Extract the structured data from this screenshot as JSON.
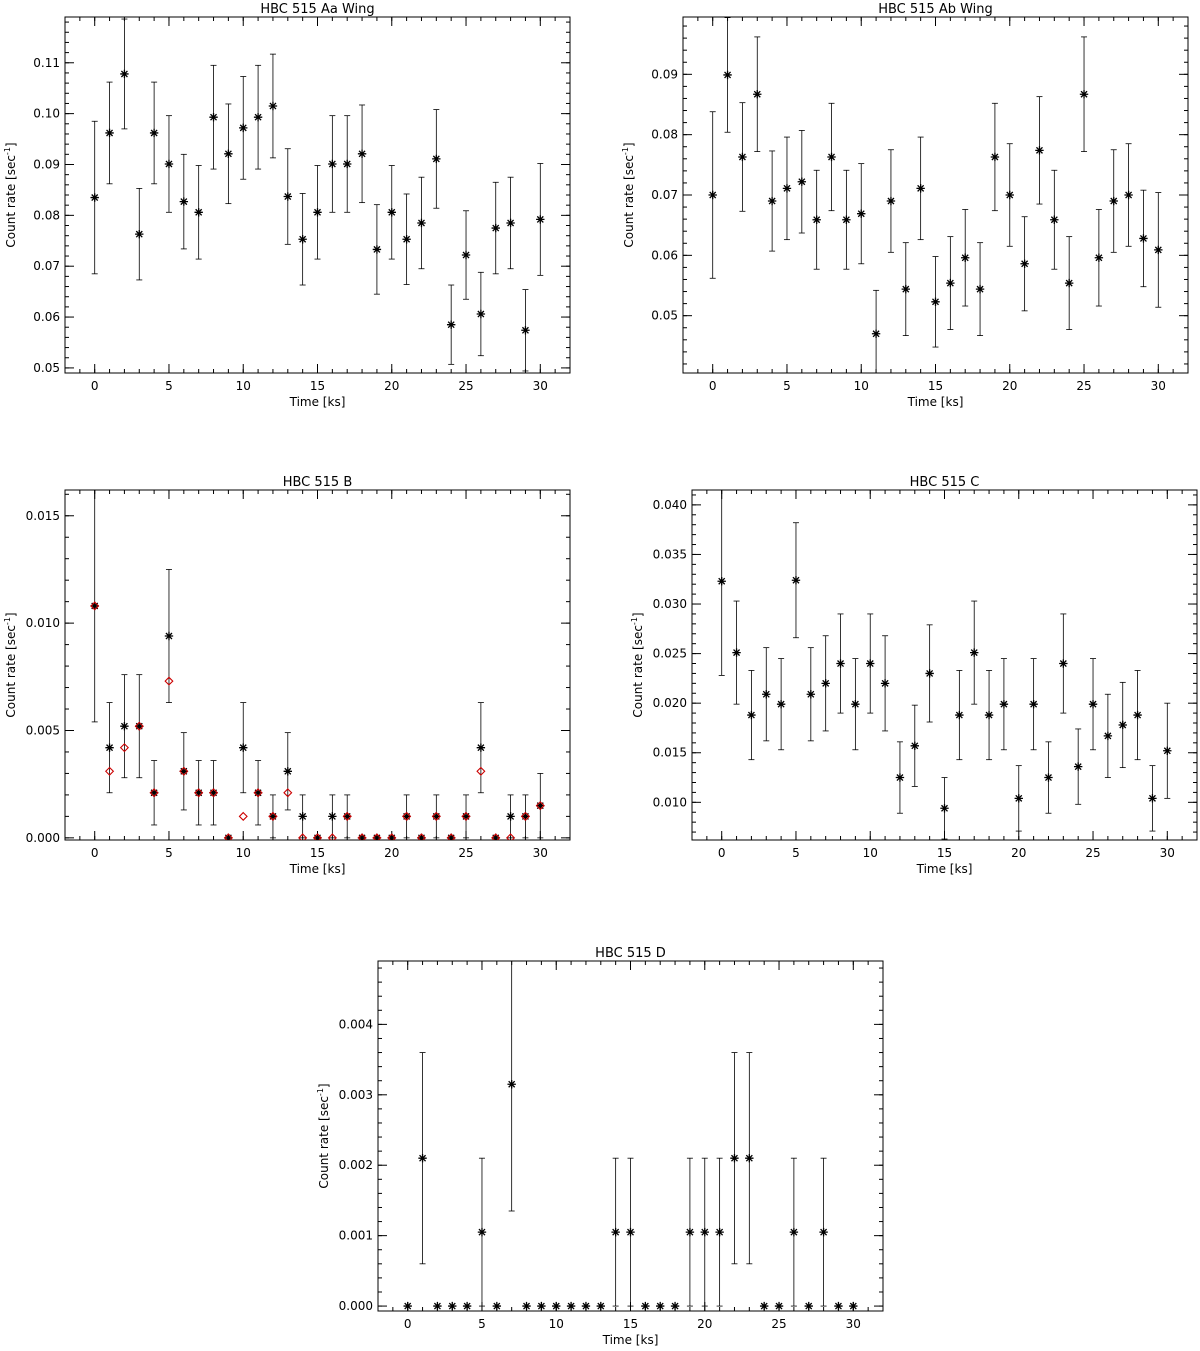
{
  "figure_panels": [
    "HBC 515 Aa Wing",
    "HBC 515 Ab Wing",
    "HBC 515 B",
    "HBC 515 C",
    "HBC 515 D"
  ],
  "colors": {
    "primary_marker": "#000000",
    "secondary_marker": "#cc0000",
    "error_bar": "#000000"
  },
  "chart_data": [
    {
      "type": "scatter",
      "title": "HBC 515 Aa Wing",
      "xlabel": "Time [ks]",
      "ylabel": "Count rate [sec",
      "ylabel_sup": "-1",
      "ylabel_end": "]",
      "xlim": [
        -2,
        32
      ],
      "ylim": [
        0.049,
        0.119
      ],
      "xticks": [
        0,
        5,
        10,
        15,
        20,
        25,
        30
      ],
      "xtick_labels": [
        "0",
        "5",
        "10",
        "15",
        "20",
        "25",
        "30"
      ],
      "yticks": [
        0.05,
        0.06,
        0.07,
        0.08,
        0.09,
        0.1,
        0.11
      ],
      "ytick_labels": [
        "0.05",
        "0.06",
        "0.07",
        "0.08",
        "0.09",
        "0.10",
        "0.11"
      ],
      "x_minor": 1,
      "y_minor": 0.002,
      "series": [
        {
          "marker": "asterisk",
          "color": "#000000",
          "x": [
            0,
            1,
            2,
            3,
            4,
            5,
            6,
            7,
            8,
            9,
            10,
            11,
            12,
            13,
            14,
            15,
            16,
            17,
            18,
            19,
            20,
            21,
            22,
            23,
            24,
            25,
            26,
            27,
            28,
            29,
            30
          ],
          "y": [
            0.0835,
            0.0962,
            0.1078,
            0.0763,
            0.0962,
            0.0901,
            0.0827,
            0.0806,
            0.0993,
            0.0921,
            0.0972,
            0.0993,
            0.1015,
            0.0837,
            0.0753,
            0.0806,
            0.0901,
            0.0901,
            0.0921,
            0.0733,
            0.0806,
            0.0753,
            0.0785,
            0.0911,
            0.0585,
            0.0722,
            0.0606,
            0.0775,
            0.0785,
            0.0574,
            0.0792
          ],
          "err": [
            0.015,
            0.01,
            0.0108,
            0.009,
            0.01,
            0.0095,
            0.0093,
            0.0092,
            0.0102,
            0.0098,
            0.0101,
            0.0102,
            0.0102,
            0.0094,
            0.009,
            0.0092,
            0.0095,
            0.0095,
            0.0096,
            0.0088,
            0.0092,
            0.0089,
            0.009,
            0.0097,
            0.0078,
            0.0087,
            0.0082,
            0.009,
            0.009,
            0.008,
            0.011
          ]
        }
      ]
    },
    {
      "type": "scatter",
      "title": "HBC 515 Ab Wing",
      "xlabel": "Time [ks]",
      "ylabel": "Count rate [sec",
      "ylabel_sup": "-1",
      "ylabel_end": "]",
      "xlim": [
        -2,
        32
      ],
      "ylim": [
        0.0405,
        0.0995
      ],
      "xticks": [
        0,
        5,
        10,
        15,
        20,
        25,
        30
      ],
      "xtick_labels": [
        "0",
        "5",
        "10",
        "15",
        "20",
        "25",
        "30"
      ],
      "yticks": [
        0.05,
        0.06,
        0.07,
        0.08,
        0.09
      ],
      "ytick_labels": [
        "0.05",
        "0.06",
        "0.07",
        "0.08",
        "0.09"
      ],
      "x_minor": 1,
      "y_minor": 0.002,
      "series": [
        {
          "marker": "asterisk",
          "color": "#000000",
          "x": [
            0,
            1,
            2,
            3,
            4,
            5,
            6,
            7,
            8,
            9,
            10,
            11,
            12,
            13,
            14,
            15,
            16,
            17,
            18,
            19,
            20,
            21,
            22,
            23,
            24,
            25,
            26,
            27,
            28,
            29,
            30
          ],
          "y": [
            0.07,
            0.0899,
            0.0763,
            0.0867,
            0.069,
            0.0711,
            0.0722,
            0.0659,
            0.0763,
            0.0659,
            0.0669,
            0.047,
            0.069,
            0.0544,
            0.0711,
            0.0523,
            0.0554,
            0.0596,
            0.0544,
            0.0763,
            0.07,
            0.0586,
            0.0774,
            0.0659,
            0.0554,
            0.0867,
            0.0596,
            0.069,
            0.07,
            0.0628,
            0.0609
          ],
          "err": [
            0.0138,
            0.0095,
            0.009,
            0.0095,
            0.0083,
            0.0085,
            0.0085,
            0.0082,
            0.0089,
            0.0082,
            0.0083,
            0.0072,
            0.0085,
            0.0077,
            0.0085,
            0.0075,
            0.0077,
            0.008,
            0.0077,
            0.0089,
            0.0085,
            0.0078,
            0.0089,
            0.0082,
            0.0077,
            0.0095,
            0.008,
            0.0085,
            0.0085,
            0.008,
            0.0095
          ]
        }
      ]
    },
    {
      "type": "scatter",
      "title": "HBC 515 B",
      "xlabel": "Time [ks]",
      "ylabel": "Count rate [sec",
      "ylabel_sup": "-1",
      "ylabel_end": "]",
      "xlim": [
        -2,
        32
      ],
      "ylim": [
        -0.0001,
        0.0162
      ],
      "xticks": [
        0,
        5,
        10,
        15,
        20,
        25,
        30
      ],
      "xtick_labels": [
        "0",
        "5",
        "10",
        "15",
        "20",
        "25",
        "30"
      ],
      "yticks": [
        0.0,
        0.005,
        0.01,
        0.015
      ],
      "ytick_labels": [
        "0.000",
        "0.005",
        "0.010",
        "0.015"
      ],
      "x_minor": 1,
      "y_minor": 0.001,
      "series": [
        {
          "marker": "asterisk",
          "color": "#000000",
          "x": [
            0,
            1,
            2,
            3,
            4,
            5,
            6,
            7,
            8,
            9,
            10,
            11,
            12,
            13,
            14,
            15,
            16,
            17,
            18,
            19,
            20,
            21,
            22,
            23,
            24,
            25,
            26,
            27,
            28,
            29,
            30
          ],
          "y": [
            0.0108,
            0.0042,
            0.0052,
            0.0052,
            0.0021,
            0.0094,
            0.0031,
            0.0021,
            0.0021,
            0.0,
            0.0042,
            0.0021,
            0.001,
            0.0031,
            0.001,
            0.0,
            0.001,
            0.001,
            0.0,
            0.0,
            0.0,
            0.001,
            0.0,
            0.001,
            0.0,
            0.001,
            0.0042,
            0.0,
            0.001,
            0.001,
            0.0015
          ],
          "err": [
            0.0054,
            0.0021,
            0.0024,
            0.0024,
            0.0015,
            0.0031,
            0.0018,
            0.0015,
            0.0015,
            0.0,
            0.0021,
            0.0015,
            0.001,
            0.0018,
            0.001,
            0.0,
            0.001,
            0.001,
            0.0,
            0.0,
            0.0,
            0.001,
            0.0,
            0.001,
            0.0,
            0.001,
            0.0021,
            0.0,
            0.001,
            0.001,
            0.0015
          ]
        },
        {
          "marker": "diamond",
          "color": "#cc0000",
          "x": [
            0,
            1,
            2,
            3,
            4,
            5,
            6,
            7,
            8,
            9,
            10,
            11,
            12,
            13,
            14,
            15,
            16,
            17,
            18,
            19,
            20,
            21,
            22,
            23,
            24,
            25,
            26,
            27,
            28,
            29,
            30
          ],
          "y": [
            0.0108,
            0.0031,
            0.0042,
            0.0052,
            0.0021,
            0.0073,
            0.0031,
            0.0021,
            0.0021,
            0.0,
            0.001,
            0.0021,
            0.001,
            0.0021,
            0.0,
            0.0,
            0.0,
            0.001,
            0.0,
            0.0,
            0.0,
            0.001,
            0.0,
            0.001,
            0.0,
            0.001,
            0.0031,
            0.0,
            0.0,
            0.001,
            0.0015
          ]
        }
      ]
    },
    {
      "type": "scatter",
      "title": "HBC 515 C",
      "xlabel": "Time [ks]",
      "ylabel": "Count rate [sec",
      "ylabel_sup": "-1",
      "ylabel_end": "]",
      "xlim": [
        -2,
        32
      ],
      "ylim": [
        0.0062,
        0.0415
      ],
      "xticks": [
        0,
        5,
        10,
        15,
        20,
        25,
        30
      ],
      "xtick_labels": [
        "0",
        "5",
        "10",
        "15",
        "20",
        "25",
        "30"
      ],
      "yticks": [
        0.01,
        0.015,
        0.02,
        0.025,
        0.03,
        0.035,
        0.04
      ],
      "ytick_labels": [
        "0.010",
        "0.015",
        "0.020",
        "0.025",
        "0.030",
        "0.035",
        "0.040"
      ],
      "x_minor": 1,
      "y_minor": 0.001,
      "series": [
        {
          "marker": "asterisk",
          "color": "#000000",
          "x": [
            0,
            1,
            2,
            3,
            4,
            5,
            6,
            7,
            8,
            9,
            10,
            11,
            12,
            13,
            14,
            15,
            16,
            17,
            18,
            19,
            20,
            21,
            22,
            23,
            24,
            25,
            26,
            27,
            28,
            29,
            30
          ],
          "y": [
            0.0323,
            0.0251,
            0.0188,
            0.0209,
            0.0199,
            0.0324,
            0.0209,
            0.022,
            0.024,
            0.0199,
            0.024,
            0.022,
            0.0125,
            0.0157,
            0.023,
            0.0094,
            0.0188,
            0.0251,
            0.0188,
            0.0199,
            0.0104,
            0.0199,
            0.0125,
            0.024,
            0.0136,
            0.0199,
            0.0167,
            0.0178,
            0.0188,
            0.0104,
            0.0152
          ],
          "err": [
            0.0095,
            0.0052,
            0.0045,
            0.0047,
            0.0046,
            0.0058,
            0.0047,
            0.0048,
            0.005,
            0.0046,
            0.005,
            0.0048,
            0.0036,
            0.0041,
            0.0049,
            0.0031,
            0.0045,
            0.0052,
            0.0045,
            0.0046,
            0.0033,
            0.0046,
            0.0036,
            0.005,
            0.0038,
            0.0046,
            0.0042,
            0.0043,
            0.0045,
            0.0033,
            0.0048
          ]
        }
      ]
    },
    {
      "type": "scatter",
      "title": "HBC 515 D",
      "xlabel": "Time [ks]",
      "ylabel": "Count rate [sec",
      "ylabel_sup": "-1",
      "ylabel_end": "]",
      "xlim": [
        -2,
        32
      ],
      "ylim": [
        -7e-05,
        0.0049
      ],
      "xticks": [
        0,
        5,
        10,
        15,
        20,
        25,
        30
      ],
      "xtick_labels": [
        "0",
        "5",
        "10",
        "15",
        "20",
        "25",
        "30"
      ],
      "yticks": [
        0.0,
        0.001,
        0.002,
        0.003,
        0.004
      ],
      "ytick_labels": [
        "0.000",
        "0.001",
        "0.002",
        "0.003",
        "0.004"
      ],
      "x_minor": 1,
      "y_minor": 0.0002,
      "series": [
        {
          "marker": "asterisk",
          "color": "#000000",
          "x": [
            0,
            1,
            2,
            3,
            4,
            5,
            6,
            7,
            8,
            9,
            10,
            11,
            12,
            13,
            14,
            15,
            16,
            17,
            18,
            19,
            20,
            21,
            22,
            23,
            24,
            25,
            26,
            27,
            28,
            29,
            30
          ],
          "y": [
            0.0,
            0.0021,
            0.0,
            0.0,
            0.0,
            0.00105,
            0.0,
            0.00315,
            0.0,
            0.0,
            0.0,
            0.0,
            0.0,
            0.0,
            0.00105,
            0.00105,
            0.0,
            0.0,
            0.0,
            0.00105,
            0.00105,
            0.00105,
            0.0021,
            0.0021,
            0.0,
            0.0,
            0.00105,
            0.0,
            0.00105,
            0.0,
            0.0
          ],
          "err": [
            0.0,
            0.0015,
            0.0,
            0.0,
            0.0,
            0.00105,
            0.0,
            0.0018,
            0.0,
            0.0,
            0.0,
            0.0,
            0.0,
            0.0,
            0.00105,
            0.00105,
            0.0,
            0.0,
            0.0,
            0.00105,
            0.00105,
            0.00105,
            0.0015,
            0.0015,
            0.0,
            0.0,
            0.00105,
            0.0,
            0.00105,
            0.0,
            0.0
          ]
        }
      ]
    }
  ]
}
